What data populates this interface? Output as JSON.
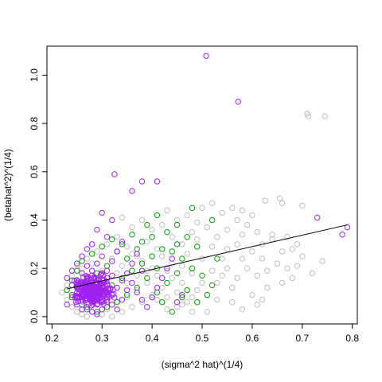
{
  "chart_data": {
    "type": "scatter",
    "title": "",
    "xlabel": "(sigma^2 hat)^(1/4)",
    "ylabel": "(betahat^2)^(1/4)",
    "xlim": [
      0.19,
      0.81
    ],
    "ylim": [
      -0.03,
      1.12
    ],
    "xticks": [
      0.2,
      0.3,
      0.4,
      0.5,
      0.6,
      0.7,
      0.8
    ],
    "yticks": [
      0.0,
      0.2,
      0.4,
      0.6,
      0.8,
      1.0
    ],
    "xtick_labels": [
      "0.2",
      "0.3",
      "0.4",
      "0.5",
      "0.6",
      "0.7",
      "0.8"
    ],
    "ytick_labels": [
      "0.0",
      "0.2",
      "0.4",
      "0.6",
      "0.8",
      "1.0"
    ],
    "grid": false,
    "marker": "open-circle",
    "colors": {
      "grey": "#BEBEBE",
      "green": "#00A000",
      "purple": "#A020F0",
      "line": "#000000"
    },
    "series": [
      {
        "color_key": "grey",
        "points": [
          [
            0.71,
            0.84
          ],
          [
            0.712,
            0.83
          ],
          [
            0.745,
            0.83
          ],
          [
            0.626,
            0.48
          ],
          [
            0.655,
            0.49
          ],
          [
            0.66,
            0.47
          ],
          [
            0.7,
            0.46
          ],
          [
            0.56,
            0.45
          ],
          [
            0.58,
            0.44
          ],
          [
            0.54,
            0.43
          ],
          [
            0.52,
            0.47
          ],
          [
            0.5,
            0.45
          ],
          [
            0.57,
            0.4
          ],
          [
            0.59,
            0.38
          ],
          [
            0.61,
            0.35
          ],
          [
            0.64,
            0.34
          ],
          [
            0.67,
            0.33
          ],
          [
            0.69,
            0.3
          ],
          [
            0.62,
            0.3
          ],
          [
            0.64,
            0.32
          ],
          [
            0.68,
            0.28
          ],
          [
            0.66,
            0.27
          ],
          [
            0.7,
            0.25
          ],
          [
            0.6,
            0.27
          ],
          [
            0.62,
            0.24
          ],
          [
            0.65,
            0.22
          ],
          [
            0.63,
            0.19
          ],
          [
            0.67,
            0.2
          ],
          [
            0.69,
            0.21
          ],
          [
            0.61,
            0.17
          ],
          [
            0.59,
            0.2
          ],
          [
            0.55,
            0.2
          ],
          [
            0.57,
            0.16
          ],
          [
            0.53,
            0.14
          ],
          [
            0.56,
            0.12
          ],
          [
            0.54,
            0.17
          ],
          [
            0.58,
            0.24
          ],
          [
            0.6,
            0.09
          ],
          [
            0.62,
            0.07
          ],
          [
            0.53,
            0.07
          ],
          [
            0.51,
            0.09
          ],
          [
            0.49,
            0.11
          ],
          [
            0.47,
            0.06
          ],
          [
            0.45,
            0.04
          ],
          [
            0.48,
            0.02
          ],
          [
            0.51,
            0.02
          ],
          [
            0.43,
            0.08
          ],
          [
            0.46,
            0.14
          ],
          [
            0.44,
            0.22
          ],
          [
            0.48,
            0.18
          ],
          [
            0.5,
            0.24
          ],
          [
            0.52,
            0.29
          ],
          [
            0.46,
            0.3
          ],
          [
            0.48,
            0.35
          ],
          [
            0.44,
            0.33
          ],
          [
            0.42,
            0.38
          ],
          [
            0.4,
            0.36
          ],
          [
            0.38,
            0.4
          ],
          [
            0.36,
            0.37
          ],
          [
            0.34,
            0.41
          ],
          [
            0.39,
            0.31
          ],
          [
            0.41,
            0.28
          ],
          [
            0.37,
            0.25
          ],
          [
            0.35,
            0.29
          ],
          [
            0.33,
            0.33
          ],
          [
            0.31,
            0.3
          ],
          [
            0.29,
            0.27
          ],
          [
            0.27,
            0.24
          ],
          [
            0.25,
            0.21
          ],
          [
            0.24,
            0.17
          ],
          [
            0.23,
            0.13
          ],
          [
            0.22,
            0.1
          ],
          [
            0.23,
            0.07
          ],
          [
            0.24,
            0.04
          ],
          [
            0.25,
            0.02
          ],
          [
            0.26,
            0.01
          ],
          [
            0.27,
            0.0
          ],
          [
            0.28,
            0.02
          ],
          [
            0.29,
            0.05
          ],
          [
            0.3,
            0.01
          ],
          [
            0.31,
            0.03
          ],
          [
            0.32,
            0.0
          ],
          [
            0.33,
            0.06
          ],
          [
            0.34,
            0.02
          ],
          [
            0.35,
            0.08
          ],
          [
            0.36,
            0.04
          ],
          [
            0.37,
            0.11
          ],
          [
            0.38,
            0.06
          ],
          [
            0.39,
            0.14
          ],
          [
            0.4,
            0.09
          ],
          [
            0.41,
            0.17
          ],
          [
            0.42,
            0.12
          ],
          [
            0.43,
            0.19
          ],
          [
            0.26,
            0.2
          ],
          [
            0.28,
            0.22
          ],
          [
            0.3,
            0.19
          ],
          [
            0.32,
            0.24
          ],
          [
            0.34,
            0.21
          ],
          [
            0.36,
            0.26
          ],
          [
            0.38,
            0.23
          ],
          [
            0.4,
            0.2
          ],
          [
            0.42,
            0.25
          ],
          [
            0.44,
            0.16
          ],
          [
            0.46,
            0.21
          ],
          [
            0.27,
            0.15
          ],
          [
            0.29,
            0.13
          ],
          [
            0.31,
            0.16
          ],
          [
            0.33,
            0.18
          ],
          [
            0.35,
            0.14
          ],
          [
            0.37,
            0.17
          ],
          [
            0.39,
            0.19
          ],
          [
            0.41,
            0.07
          ],
          [
            0.43,
            0.03
          ],
          [
            0.45,
            0.1
          ],
          [
            0.47,
            0.26
          ],
          [
            0.49,
            0.32
          ],
          [
            0.51,
            0.37
          ],
          [
            0.53,
            0.33
          ],
          [
            0.55,
            0.28
          ],
          [
            0.57,
            0.3
          ],
          [
            0.6,
            0.42
          ],
          [
            0.43,
            0.44
          ],
          [
            0.45,
            0.4
          ],
          [
            0.47,
            0.42
          ],
          [
            0.49,
            0.39
          ],
          [
            0.55,
            0.36
          ],
          [
            0.58,
            0.34
          ],
          [
            0.63,
            0.12
          ],
          [
            0.66,
            0.14
          ],
          [
            0.68,
            0.16
          ],
          [
            0.72,
            0.18
          ],
          [
            0.74,
            0.23
          ],
          [
            0.61,
            0.05
          ],
          [
            0.58,
            0.03
          ],
          [
            0.56,
            0.06
          ],
          [
            0.54,
            0.24
          ],
          [
            0.52,
            0.19
          ],
          [
            0.5,
            0.14
          ],
          [
            0.48,
            0.08
          ],
          [
            0.46,
            0.05
          ]
        ]
      },
      {
        "color_key": "green",
        "points": [
          [
            0.48,
            0.45
          ],
          [
            0.52,
            0.4
          ],
          [
            0.45,
            0.38
          ],
          [
            0.43,
            0.35
          ],
          [
            0.4,
            0.33
          ],
          [
            0.38,
            0.31
          ],
          [
            0.36,
            0.34
          ],
          [
            0.34,
            0.3
          ],
          [
            0.32,
            0.32
          ],
          [
            0.3,
            0.29
          ],
          [
            0.28,
            0.26
          ],
          [
            0.26,
            0.23
          ],
          [
            0.25,
            0.19
          ],
          [
            0.24,
            0.15
          ],
          [
            0.23,
            0.11
          ],
          [
            0.24,
            0.08
          ],
          [
            0.26,
            0.05
          ],
          [
            0.28,
            0.07
          ],
          [
            0.3,
            0.1
          ],
          [
            0.32,
            0.13
          ],
          [
            0.34,
            0.16
          ],
          [
            0.36,
            0.19
          ],
          [
            0.38,
            0.22
          ],
          [
            0.4,
            0.25
          ],
          [
            0.42,
            0.28
          ],
          [
            0.44,
            0.27
          ],
          [
            0.46,
            0.24
          ],
          [
            0.48,
            0.2
          ],
          [
            0.5,
            0.17
          ],
          [
            0.52,
            0.13
          ],
          [
            0.53,
            0.24
          ],
          [
            0.49,
            0.29
          ],
          [
            0.47,
            0.33
          ],
          [
            0.45,
            0.3
          ],
          [
            0.41,
            0.2
          ],
          [
            0.39,
            0.16
          ],
          [
            0.37,
            0.12
          ],
          [
            0.35,
            0.09
          ],
          [
            0.33,
            0.06
          ],
          [
            0.31,
            0.04
          ],
          [
            0.29,
            0.02
          ],
          [
            0.27,
            0.03
          ],
          [
            0.41,
            0.1
          ],
          [
            0.43,
            0.14
          ],
          [
            0.45,
            0.18
          ],
          [
            0.47,
            0.11
          ],
          [
            0.49,
            0.06
          ],
          [
            0.51,
            0.09
          ],
          [
            0.33,
            0.27
          ],
          [
            0.35,
            0.24
          ],
          [
            0.37,
            0.28
          ],
          [
            0.39,
            0.38
          ],
          [
            0.41,
            0.42
          ],
          [
            0.31,
            0.21
          ],
          [
            0.29,
            0.18
          ],
          [
            0.27,
            0.15
          ],
          [
            0.25,
            0.12
          ],
          [
            0.42,
            0.06
          ],
          [
            0.44,
            0.02
          ],
          [
            0.46,
            0.08
          ]
        ]
      },
      {
        "color_key": "purple",
        "points": [
          [
            0.508,
            1.08
          ],
          [
            0.572,
            0.89
          ],
          [
            0.325,
            0.59
          ],
          [
            0.36,
            0.52
          ],
          [
            0.38,
            0.56
          ],
          [
            0.41,
            0.56
          ],
          [
            0.73,
            0.41
          ],
          [
            0.79,
            0.37
          ],
          [
            0.78,
            0.34
          ],
          [
            0.3,
            0.43
          ],
          [
            0.32,
            0.4
          ],
          [
            0.29,
            0.36
          ],
          [
            0.31,
            0.33
          ],
          [
            0.28,
            0.3
          ],
          [
            0.34,
            0.31
          ],
          [
            0.27,
            0.28
          ],
          [
            0.26,
            0.25
          ],
          [
            0.25,
            0.22
          ],
          [
            0.24,
            0.19
          ],
          [
            0.23,
            0.16
          ],
          [
            0.24,
            0.13
          ],
          [
            0.25,
            0.1
          ],
          [
            0.26,
            0.07
          ],
          [
            0.27,
            0.04
          ],
          [
            0.28,
            0.02
          ],
          [
            0.29,
            0.01
          ],
          [
            0.3,
            0.03
          ],
          [
            0.31,
            0.06
          ],
          [
            0.32,
            0.09
          ],
          [
            0.33,
            0.12
          ],
          [
            0.34,
            0.15
          ],
          [
            0.35,
            0.18
          ],
          [
            0.36,
            0.14
          ],
          [
            0.37,
            0.1
          ],
          [
            0.38,
            0.07
          ],
          [
            0.39,
            0.04
          ],
          [
            0.4,
            0.08
          ],
          [
            0.41,
            0.12
          ],
          [
            0.42,
            0.16
          ],
          [
            0.43,
            0.2
          ],
          [
            0.44,
            0.24
          ],
          [
            0.45,
            0.06
          ],
          [
            0.46,
            0.09
          ],
          [
            0.26,
            0.18
          ],
          [
            0.27,
            0.21
          ],
          [
            0.28,
            0.17
          ],
          [
            0.29,
            0.14
          ],
          [
            0.3,
            0.11
          ],
          [
            0.31,
            0.08
          ],
          [
            0.32,
            0.05
          ],
          [
            0.33,
            0.03
          ],
          [
            0.34,
            0.07
          ],
          [
            0.35,
            0.11
          ],
          [
            0.36,
            0.22
          ],
          [
            0.37,
            0.26
          ],
          [
            0.38,
            0.19
          ],
          [
            0.25,
            0.15
          ],
          [
            0.26,
            0.12
          ],
          [
            0.27,
            0.09
          ],
          [
            0.28,
            0.06
          ],
          [
            0.29,
            0.1
          ],
          [
            0.3,
            0.15
          ],
          [
            0.31,
            0.19
          ],
          [
            0.32,
            0.23
          ],
          [
            0.33,
            0.27
          ],
          [
            0.24,
            0.09
          ],
          [
            0.25,
            0.05
          ],
          [
            0.23,
            0.05
          ],
          [
            0.27,
            0.13
          ],
          [
            0.28,
            0.11
          ],
          [
            0.29,
            0.08
          ],
          [
            0.3,
            0.06
          ],
          [
            0.26,
            0.09
          ],
          [
            0.27,
            0.07
          ],
          [
            0.28,
            0.14
          ],
          [
            0.29,
            0.12
          ],
          [
            0.3,
            0.09
          ],
          [
            0.31,
            0.13
          ],
          [
            0.32,
            0.17
          ],
          [
            0.26,
            0.03
          ],
          [
            0.27,
            0.16
          ],
          [
            0.28,
            0.19
          ],
          [
            0.29,
            0.22
          ],
          [
            0.3,
            0.25
          ],
          [
            0.25,
            0.08
          ],
          [
            0.26,
            0.14
          ],
          [
            0.27,
            0.11
          ],
          [
            0.28,
            0.08
          ],
          [
            0.29,
            0.05
          ],
          [
            0.3,
            0.18
          ]
        ]
      }
    ],
    "dense_cluster": {
      "color_key": "purple",
      "x_range": [
        0.235,
        0.335
      ],
      "y_range": [
        0.03,
        0.19
      ],
      "count": 220
    },
    "fit_line": {
      "color_key": "line",
      "x": [
        0.23,
        0.79
      ],
      "y": [
        0.115,
        0.38
      ]
    }
  }
}
